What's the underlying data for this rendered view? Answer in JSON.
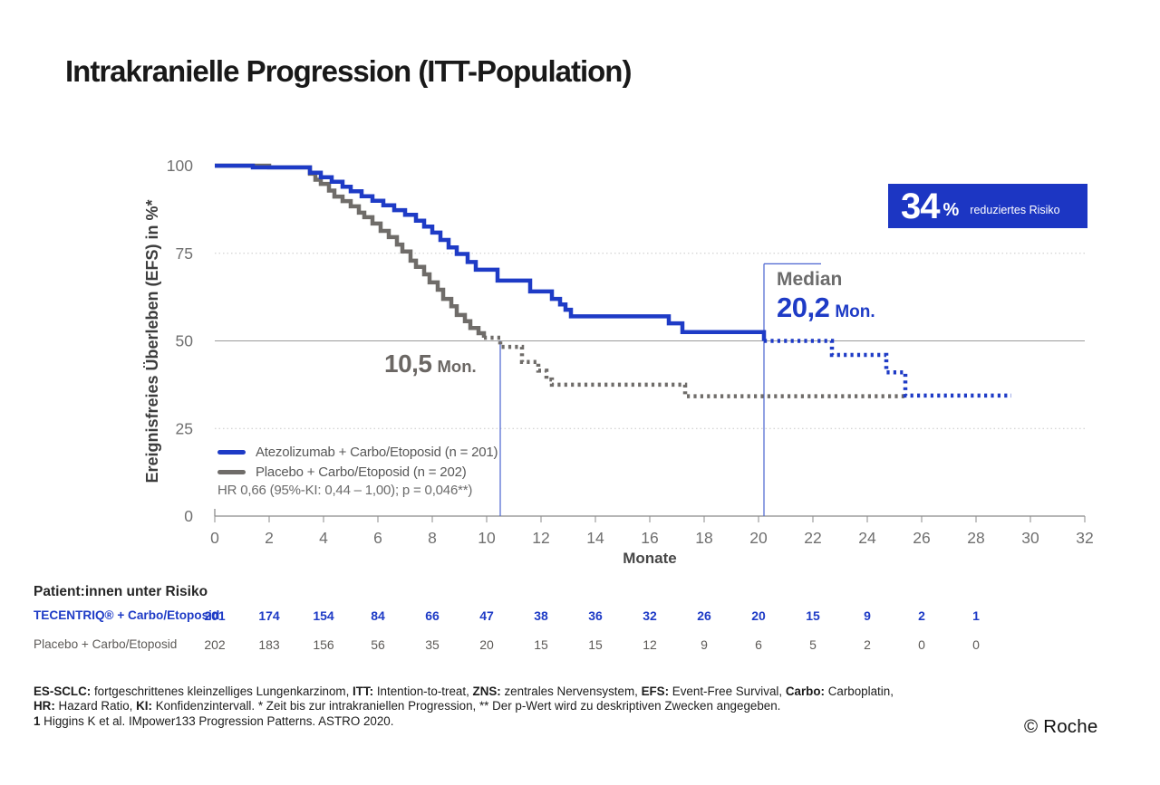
{
  "page": {
    "title": "Intrakranielle Progression (ITT-Population)",
    "copyright": "© Roche"
  },
  "colors": {
    "accent_blue": "#1E3BC6",
    "curve_gray": "#6F6C69",
    "badge_bg": "#1C36C3",
    "median_line_blue": "#4A63D0"
  },
  "badge": {
    "value": "34",
    "unit": "%",
    "label": "reduziertes Risiko"
  },
  "medians": {
    "atezolizumab": {
      "label": "Median",
      "value": "20,2",
      "unit": "Mon."
    },
    "placebo": {
      "value": "10,5",
      "unit": "Mon."
    }
  },
  "legend": {
    "items": [
      {
        "name": "Atezolizumab + Carbo/Etoposid (n = 201)",
        "color": "#1E3BC6"
      },
      {
        "name": "Placebo + Carbo/Etoposid (n = 202)",
        "color": "#6F6C69"
      }
    ],
    "hr_line": "HR 0,66 (95%-KI: 0,44 – 1,00); p = 0,046**)"
  },
  "chart_data": {
    "type": "line",
    "subtype": "kaplan-meier-step",
    "title": "Intrakranielle Progression (ITT-Population)",
    "xlabel": "Monate",
    "ylabel": "Ereignisfreies Überleben (EFS) in %*",
    "xlim": [
      0,
      32
    ],
    "ylim": [
      0,
      100
    ],
    "xticks": [
      0,
      2,
      4,
      6,
      8,
      10,
      12,
      14,
      16,
      18,
      20,
      22,
      24,
      26,
      28,
      30,
      32
    ],
    "yticks": [
      0,
      25,
      50,
      75,
      100
    ],
    "gridlines": [
      {
        "y": 75,
        "style": "dotted"
      },
      {
        "y": 50,
        "style": "solid"
      },
      {
        "y": 25,
        "style": "dotted"
      }
    ],
    "hazard_ratio": "HR 0,66 (95%-KI: 0,44 – 1,00); p = 0,046**)",
    "series": [
      {
        "name": "Atezolizumab + Carbo/Etoposid (n = 201)",
        "color": "#1E3BC6",
        "median_months": 20.2,
        "solid_steps": [
          [
            0,
            100
          ],
          [
            1.4,
            99.5
          ],
          [
            3.5,
            98
          ],
          [
            3.9,
            96.7
          ],
          [
            4.3,
            95.4
          ],
          [
            4.7,
            94
          ],
          [
            5,
            92.7
          ],
          [
            5.4,
            91.3
          ],
          [
            5.8,
            90
          ],
          [
            6.2,
            88.7
          ],
          [
            6.6,
            87.3
          ],
          [
            7,
            86
          ],
          [
            7.4,
            84.3
          ],
          [
            7.7,
            82.6
          ],
          [
            8,
            80.9
          ],
          [
            8.3,
            78.8
          ],
          [
            8.6,
            76.7
          ],
          [
            8.9,
            74.8
          ],
          [
            9.3,
            72.5
          ],
          [
            9.6,
            70.3
          ],
          [
            10.4,
            67.2
          ],
          [
            11.6,
            64.1
          ],
          [
            12.4,
            62
          ],
          [
            12.7,
            60.4
          ],
          [
            12.9,
            58.9
          ],
          [
            13.1,
            57
          ],
          [
            16.7,
            55
          ],
          [
            17.2,
            52.5
          ],
          [
            20.2,
            50
          ]
        ],
        "censored_dotted_steps": [
          [
            20.2,
            50
          ],
          [
            22.7,
            46
          ],
          [
            24.7,
            41
          ],
          [
            25.4,
            34.4
          ],
          [
            29.3,
            34.4
          ]
        ]
      },
      {
        "name": "Placebo + Carbo/Etoposid (n = 202)",
        "color": "#6F6C69",
        "median_months": 10.5,
        "solid_steps": [
          [
            0,
            100
          ],
          [
            2,
            99.5
          ],
          [
            3.5,
            97.7
          ],
          [
            3.7,
            96
          ],
          [
            3.9,
            94.8
          ],
          [
            4.2,
            92.9
          ],
          [
            4.4,
            91.2
          ],
          [
            4.7,
            89.9
          ],
          [
            5,
            88.4
          ],
          [
            5.3,
            86.6
          ],
          [
            5.5,
            85.3
          ],
          [
            5.8,
            83.5
          ],
          [
            6.1,
            81.4
          ],
          [
            6.4,
            79.6
          ],
          [
            6.7,
            77.5
          ],
          [
            6.9,
            75.5
          ],
          [
            7.2,
            72.9
          ],
          [
            7.4,
            71.1
          ],
          [
            7.7,
            69
          ],
          [
            7.9,
            66.7
          ],
          [
            8.2,
            64.6
          ],
          [
            8.4,
            62
          ],
          [
            8.7,
            59.9
          ],
          [
            8.9,
            57.4
          ],
          [
            9.2,
            55.6
          ],
          [
            9.4,
            53.7
          ],
          [
            9.7,
            52.2
          ],
          [
            9.9,
            50.9
          ]
        ],
        "censored_dotted_steps": [
          [
            9.9,
            50.9
          ],
          [
            10.5,
            48.3
          ],
          [
            11.3,
            44
          ],
          [
            11.9,
            41.5
          ],
          [
            12.2,
            39
          ],
          [
            12.4,
            37.5
          ],
          [
            17.3,
            34.2
          ],
          [
            25.4,
            34.2
          ]
        ]
      }
    ],
    "annotations": {
      "median_lines": [
        {
          "x": 10.5,
          "y_top_pct": 50
        },
        {
          "x": 20.2,
          "y_top_pct": 72,
          "top_bar_to_x": 22.3
        }
      ]
    },
    "risk_table": {
      "title": "Patient:innen unter Risiko",
      "months": [
        0,
        2,
        4,
        6,
        8,
        10,
        12,
        14,
        16,
        18,
        20,
        22,
        24,
        26,
        28
      ],
      "rows": [
        {
          "label": "TECENTRIQ® + Carbo/Etoposid",
          "color": "#1E3BC6",
          "bold": true,
          "values": [
            201,
            174,
            154,
            84,
            66,
            47,
            38,
            36,
            32,
            26,
            20,
            15,
            9,
            2,
            1
          ]
        },
        {
          "label": "Placebo + Carbo/Etoposid",
          "color": "#5d5a57",
          "bold": false,
          "values": [
            202,
            183,
            156,
            56,
            35,
            20,
            15,
            15,
            12,
            9,
            6,
            5,
            2,
            0,
            0
          ]
        }
      ]
    }
  },
  "footnotes": {
    "lines": [
      [
        {
          "text": "ES-SCLC:",
          "bold": true
        },
        {
          "text": " fortgeschrittenes kleinzelliges Lungenkarzinom, ",
          "bold": false
        },
        {
          "text": "ITT:",
          "bold": true
        },
        {
          "text": " Intention-to-treat, ",
          "bold": false
        },
        {
          "text": "ZNS:",
          "bold": true
        },
        {
          "text": " zentrales Nervensystem, ",
          "bold": false
        },
        {
          "text": "EFS:",
          "bold": true
        },
        {
          "text": " Event-Free Survival, ",
          "bold": false
        },
        {
          "text": "Carbo:",
          "bold": true
        },
        {
          "text": " Carboplatin,",
          "bold": false
        }
      ],
      [
        {
          "text": "HR:",
          "bold": true
        },
        {
          "text": " Hazard Ratio, ",
          "bold": false
        },
        {
          "text": "KI:",
          "bold": true
        },
        {
          "text": " Konfidenzintervall. * Zeit bis zur intrakraniellen Progression, ** Der p-Wert wird zu deskriptiven Zwecken angegeben.",
          "bold": false
        }
      ],
      [
        {
          "text": "1",
          "bold": true
        },
        {
          "text": " Higgins K et al. IMpower133 Progression Patterns. ASTRO 2020.",
          "bold": false
        }
      ]
    ]
  }
}
